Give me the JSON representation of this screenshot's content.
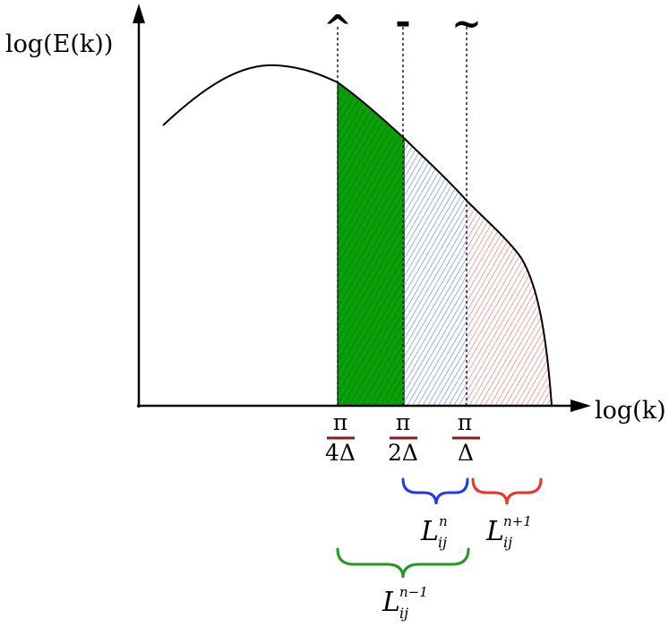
{
  "axes": {
    "y_label": "log(E(k))",
    "x_label": "log(k)"
  },
  "filters": {
    "hat_symbol": "^",
    "bar_symbol": "-",
    "tilde_symbol": "~"
  },
  "ticks": [
    {
      "numerator": "π",
      "denominator": "4Δ"
    },
    {
      "numerator": "π",
      "denominator": "2Δ"
    },
    {
      "numerator": "π",
      "denominator": "Δ"
    }
  ],
  "braces": {
    "n": {
      "base": "L",
      "sub": "ij",
      "sup": "n",
      "color": "#2438f0"
    },
    "n_plus_1": {
      "base": "L",
      "sub": "ij",
      "sup": "n+1",
      "color": "#f0302a"
    },
    "n_minus_1": {
      "base": "L",
      "sub": "ij",
      "sup": "n−1",
      "color": "#1f9a1f"
    }
  },
  "colors": {
    "green_fill": "#0aa00a",
    "blue_hatch": "#3050e8",
    "red_hatch": "#f03a3a",
    "tick_bar": "#8b1a1a"
  }
}
